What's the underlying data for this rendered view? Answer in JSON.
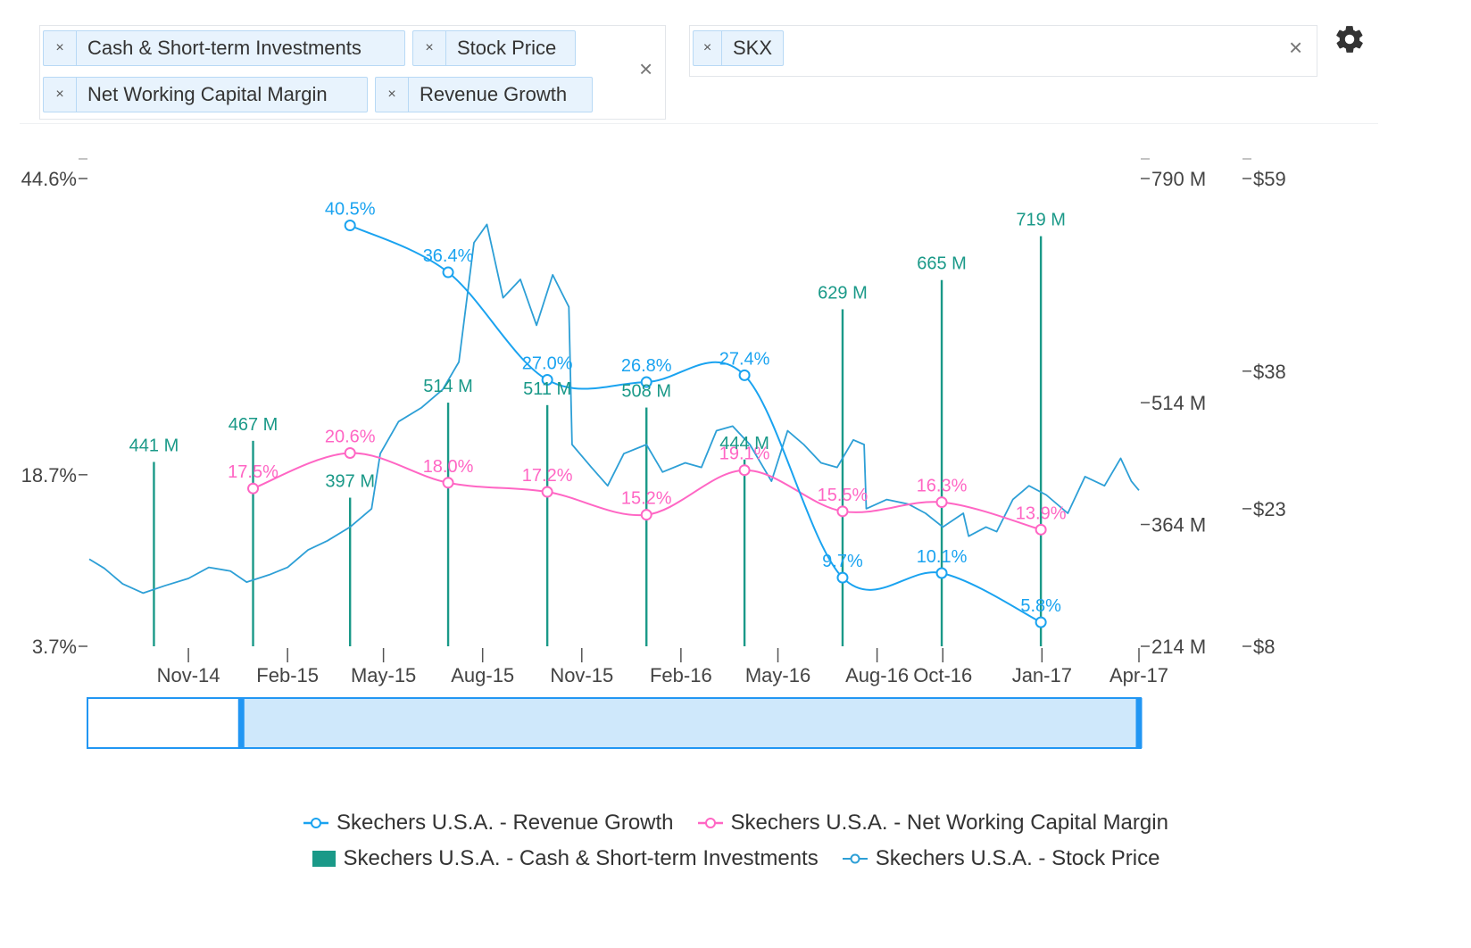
{
  "filters": {
    "metrics": [
      {
        "label": "Cash & Short-term Investments"
      },
      {
        "label": "Stock Price"
      },
      {
        "label": "Net Working Capital Margin"
      },
      {
        "label": "Revenue Growth"
      }
    ],
    "tickers": [
      {
        "label": "SKX"
      }
    ],
    "remove_glyph": "×",
    "clear_glyph": "×",
    "settings_icon": "gear-icon"
  },
  "colors": {
    "revenue_growth": "#1aa3f0",
    "nwc_margin": "#ff66c4",
    "cash": "#1a9988",
    "stock_price": "#2d9fd6",
    "navigator_fill": "#cfe8fb",
    "navigator_border": "#2196f3"
  },
  "chart_data": {
    "type": "line",
    "x_ticks": [
      "Nov-14",
      "Feb-15",
      "May-15",
      "Aug-15",
      "Nov-15",
      "Feb-16",
      "May-16",
      "Aug-16",
      "Oct-16",
      "Jan-17",
      "Apr-17"
    ],
    "x_range": [
      "2014-08-01",
      "2017-04-01"
    ],
    "axes": {
      "left": {
        "ticks": [
          "44.6%",
          "18.7%",
          "3.7%"
        ],
        "range": [
          3.7,
          44.6
        ],
        "unit": "%"
      },
      "middle": {
        "ticks": [
          "790 M",
          "514 M",
          "364 M",
          "214 M"
        ],
        "range": [
          214,
          790
        ],
        "unit": "M"
      },
      "right": {
        "ticks": [
          "$59",
          "$38",
          "$23",
          "$8"
        ],
        "range": [
          8,
          59
        ],
        "unit": "$"
      }
    },
    "series": [
      {
        "name": "Skechers U.S.A. - Revenue Growth",
        "type": "line",
        "axis": "left",
        "marker": "circle",
        "points": [
          {
            "x": "2015-03-31",
            "y": 40.5,
            "label": "40.5%"
          },
          {
            "x": "2015-06-30",
            "y": 36.4,
            "label": "36.4%"
          },
          {
            "x": "2015-09-30",
            "y": 27.0,
            "label": "27.0%"
          },
          {
            "x": "2015-12-31",
            "y": 26.8,
            "label": "26.8%"
          },
          {
            "x": "2016-03-31",
            "y": 27.4,
            "label": "27.4%"
          },
          {
            "x": "2016-06-30",
            "y": 9.7,
            "label": "9.7%"
          },
          {
            "x": "2016-09-30",
            "y": 10.1,
            "label": "10.1%"
          },
          {
            "x": "2016-12-31",
            "y": 5.8,
            "label": "5.8%"
          }
        ]
      },
      {
        "name": "Skechers U.S.A. - Net Working Capital Margin",
        "type": "line",
        "axis": "left",
        "marker": "circle",
        "points": [
          {
            "x": "2014-12-31",
            "y": 17.5,
            "label": "17.5%"
          },
          {
            "x": "2015-03-31",
            "y": 20.6,
            "label": "20.6%"
          },
          {
            "x": "2015-06-30",
            "y": 18.0,
            "label": "18.0%"
          },
          {
            "x": "2015-09-30",
            "y": 17.2,
            "label": "17.2%"
          },
          {
            "x": "2015-12-31",
            "y": 15.2,
            "label": "15.2%"
          },
          {
            "x": "2016-03-31",
            "y": 19.1,
            "label": "19.1%"
          },
          {
            "x": "2016-06-30",
            "y": 15.5,
            "label": "15.5%"
          },
          {
            "x": "2016-09-30",
            "y": 16.3,
            "label": "16.3%"
          },
          {
            "x": "2016-12-31",
            "y": 13.9,
            "label": "13.9%"
          }
        ]
      },
      {
        "name": "Skechers U.S.A. - Cash & Short-term Investments",
        "type": "bar",
        "axis": "middle",
        "points": [
          {
            "x": "2014-09-30",
            "y": 441,
            "label": "441 M"
          },
          {
            "x": "2014-12-31",
            "y": 467,
            "label": "467 M"
          },
          {
            "x": "2015-03-31",
            "y": 397,
            "label": "397 M"
          },
          {
            "x": "2015-06-30",
            "y": 514,
            "label": "514 M"
          },
          {
            "x": "2015-09-30",
            "y": 511,
            "label": "511 M"
          },
          {
            "x": "2015-12-31",
            "y": 508,
            "label": "508 M"
          },
          {
            "x": "2016-03-31",
            "y": 444,
            "label": "444 M"
          },
          {
            "x": "2016-06-30",
            "y": 629,
            "label": "629 M"
          },
          {
            "x": "2016-09-30",
            "y": 665,
            "label": "665 M"
          },
          {
            "x": "2016-12-31",
            "y": 719,
            "label": "719 M"
          }
        ]
      },
      {
        "name": "Skechers U.S.A. - Stock Price",
        "type": "line",
        "axis": "right",
        "points": [
          {
            "x": "2014-08-01",
            "y": 17.5
          },
          {
            "x": "2014-08-15",
            "y": 16.5
          },
          {
            "x": "2014-09-01",
            "y": 14.8
          },
          {
            "x": "2014-09-20",
            "y": 13.8
          },
          {
            "x": "2014-10-10",
            "y": 14.6
          },
          {
            "x": "2014-11-01",
            "y": 15.4
          },
          {
            "x": "2014-11-20",
            "y": 16.6
          },
          {
            "x": "2014-12-10",
            "y": 16.2
          },
          {
            "x": "2014-12-25",
            "y": 15.0
          },
          {
            "x": "2015-01-15",
            "y": 15.8
          },
          {
            "x": "2015-02-01",
            "y": 16.6
          },
          {
            "x": "2015-02-20",
            "y": 18.5
          },
          {
            "x": "2015-03-10",
            "y": 19.5
          },
          {
            "x": "2015-03-31",
            "y": 21.0
          },
          {
            "x": "2015-04-20",
            "y": 23.0
          },
          {
            "x": "2015-04-28",
            "y": 29.0
          },
          {
            "x": "2015-05-15",
            "y": 32.5
          },
          {
            "x": "2015-06-05",
            "y": 34.0
          },
          {
            "x": "2015-06-25",
            "y": 36.0
          },
          {
            "x": "2015-07-10",
            "y": 39.0
          },
          {
            "x": "2015-07-24",
            "y": 52.0
          },
          {
            "x": "2015-08-05",
            "y": 54.0
          },
          {
            "x": "2015-08-20",
            "y": 46.0
          },
          {
            "x": "2015-09-05",
            "y": 48.0
          },
          {
            "x": "2015-09-20",
            "y": 43.0
          },
          {
            "x": "2015-10-05",
            "y": 48.5
          },
          {
            "x": "2015-10-20",
            "y": 45.0
          },
          {
            "x": "2015-10-23",
            "y": 30.0
          },
          {
            "x": "2015-11-10",
            "y": 27.5
          },
          {
            "x": "2015-11-25",
            "y": 25.5
          },
          {
            "x": "2015-12-10",
            "y": 29.0
          },
          {
            "x": "2015-12-31",
            "y": 30.0
          },
          {
            "x": "2016-01-15",
            "y": 27.0
          },
          {
            "x": "2016-02-05",
            "y": 28.0
          },
          {
            "x": "2016-02-20",
            "y": 27.5
          },
          {
            "x": "2016-03-05",
            "y": 31.5
          },
          {
            "x": "2016-03-20",
            "y": 32.0
          },
          {
            "x": "2016-04-05",
            "y": 30.0
          },
          {
            "x": "2016-04-25",
            "y": 26.0
          },
          {
            "x": "2016-05-10",
            "y": 31.5
          },
          {
            "x": "2016-05-25",
            "y": 30.0
          },
          {
            "x": "2016-06-10",
            "y": 28.0
          },
          {
            "x": "2016-06-25",
            "y": 27.5
          },
          {
            "x": "2016-07-10",
            "y": 30.5
          },
          {
            "x": "2016-07-20",
            "y": 30.0
          },
          {
            "x": "2016-07-22",
            "y": 23.0
          },
          {
            "x": "2016-08-10",
            "y": 24.0
          },
          {
            "x": "2016-08-30",
            "y": 23.5
          },
          {
            "x": "2016-09-15",
            "y": 22.5
          },
          {
            "x": "2016-10-01",
            "y": 21.0
          },
          {
            "x": "2016-10-20",
            "y": 22.5
          },
          {
            "x": "2016-10-25",
            "y": 20.0
          },
          {
            "x": "2016-11-10",
            "y": 21.0
          },
          {
            "x": "2016-11-20",
            "y": 20.5
          },
          {
            "x": "2016-12-05",
            "y": 24.0
          },
          {
            "x": "2016-12-20",
            "y": 25.5
          },
          {
            "x": "2017-01-05",
            "y": 24.5
          },
          {
            "x": "2017-01-25",
            "y": 22.5
          },
          {
            "x": "2017-02-10",
            "y": 26.5
          },
          {
            "x": "2017-02-28",
            "y": 25.5
          },
          {
            "x": "2017-03-15",
            "y": 28.5
          },
          {
            "x": "2017-03-25",
            "y": 26.0
          },
          {
            "x": "2017-04-01",
            "y": 25.0
          }
        ]
      }
    ],
    "navigator": {
      "range": [
        "2014-08-01",
        "2017-04-01"
      ],
      "selected_from": "2014-12-20",
      "selected_to": "2017-04-01"
    },
    "legend": {
      "placement": "bottom-center"
    }
  }
}
